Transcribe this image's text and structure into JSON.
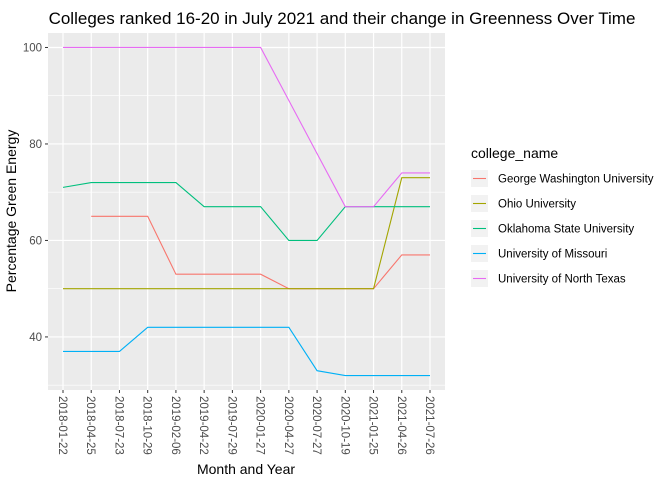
{
  "chart_data": {
    "type": "line",
    "title": "Colleges ranked 16-20 in July 2021 and their change in Greenness Over Time",
    "xlabel": "Month and Year",
    "ylabel": "Percentage Green Energy",
    "categories": [
      "2018-01-22",
      "2018-04-25",
      "2018-07-23",
      "2018-10-29",
      "2019-02-06",
      "2019-04-22",
      "2019-07-29",
      "2020-01-27",
      "2020-04-27",
      "2020-07-27",
      "2020-10-19",
      "2021-01-25",
      "2021-04-26",
      "2021-07-26"
    ],
    "y_ticks": [
      40,
      60,
      80,
      100
    ],
    "ylim": [
      29,
      103
    ],
    "grid": true,
    "legend": {
      "title": "college_name",
      "placement": "right"
    },
    "series": [
      {
        "name": "George Washington University",
        "color": "#F8766D",
        "values": [
          null,
          65,
          65,
          65,
          53,
          53,
          53,
          53,
          50,
          50,
          50,
          50,
          57,
          57
        ]
      },
      {
        "name": "Ohio University",
        "color": "#A3A500",
        "values": [
          50,
          50,
          50,
          50,
          50,
          50,
          50,
          50,
          50,
          50,
          50,
          50,
          73,
          73
        ]
      },
      {
        "name": "Oklahoma State University",
        "color": "#00BF7D",
        "values": [
          71,
          72,
          72,
          72,
          72,
          67,
          67,
          67,
          60,
          60,
          67,
          67,
          67,
          67
        ]
      },
      {
        "name": "University of Missouri",
        "color": "#00B0F6",
        "values": [
          37,
          37,
          37,
          42,
          42,
          42,
          42,
          42,
          42,
          33,
          32,
          32,
          32,
          32
        ]
      },
      {
        "name": "University of North Texas",
        "color": "#E76BF3",
        "values": [
          100,
          100,
          100,
          100,
          100,
          100,
          100,
          100,
          89,
          78,
          67,
          67,
          74,
          74
        ]
      }
    ]
  }
}
